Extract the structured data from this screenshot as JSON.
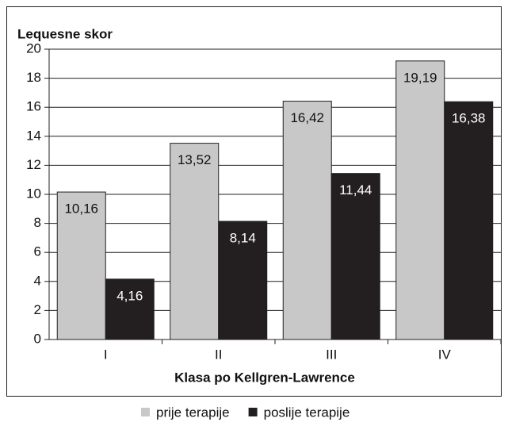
{
  "chart_data": {
    "type": "bar",
    "y_label": "Lequesne skor",
    "x_label": "Klasa po Kellgren-Lawrence",
    "categories": [
      "I",
      "II",
      "III",
      "IV"
    ],
    "series": [
      {
        "name": "prije terapije",
        "color": "#c8c8c8",
        "values": [
          10.16,
          13.52,
          16.42,
          19.19
        ],
        "value_labels": [
          "10,16",
          "13,52",
          "16,42",
          "19,19"
        ]
      },
      {
        "name": "poslije terapije",
        "color": "#231f20",
        "values": [
          4.16,
          8.14,
          11.44,
          16.38
        ],
        "value_labels": [
          "4,16",
          "8,14",
          "11,44",
          "16,38"
        ]
      }
    ],
    "ylim": [
      0,
      20
    ],
    "yticks": [
      0,
      2,
      4,
      6,
      8,
      10,
      12,
      14,
      16,
      18,
      20
    ],
    "grid": true,
    "legend": "bottom"
  }
}
